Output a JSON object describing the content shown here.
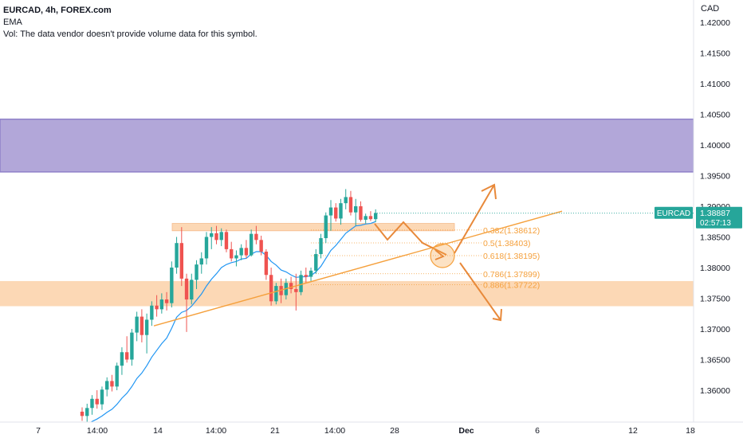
{
  "legend": {
    "symbol": "EURCAD, 4h, FOREX.com",
    "indicator": "EMA",
    "volume_note": "Vol: The data vendor doesn't provide volume data for this symbol."
  },
  "price_axis": {
    "currency": "CAD",
    "ticks": [
      "1.42000",
      "1.41500",
      "1.41000",
      "1.40500",
      "1.40000",
      "1.39500",
      "1.39000",
      "1.38500",
      "1.38000",
      "1.37500",
      "1.37000",
      "1.36500",
      "1.36000"
    ],
    "range": [
      1.3555,
      1.4232
    ]
  },
  "price_label": {
    "symbol": "EURCAD",
    "price": "1.38887",
    "countdown": "02:57:13"
  },
  "time_axis": {
    "labels": [
      "7",
      "14:00",
      "14",
      "14:00",
      "21",
      "14:00",
      "28",
      "Dec",
      "6",
      "12",
      "18"
    ],
    "bold": [
      "Dec"
    ]
  },
  "fib_levels": [
    {
      "label": "0.382(1.38612)",
      "ratio": 0.382,
      "price": 1.38612
    },
    {
      "label": "0.5(1.38403)",
      "ratio": 0.5,
      "price": 1.38403
    },
    {
      "label": "0.618(1.38195)",
      "ratio": 0.618,
      "price": 1.38195
    },
    {
      "label": "0.786(1.37899)",
      "ratio": 0.786,
      "price": 1.37899
    },
    {
      "label": "0.886(1.37722)",
      "ratio": 0.886,
      "price": 1.37722
    }
  ],
  "zones": [
    {
      "type": "resistance",
      "from": 1.3956,
      "to": 1.4042,
      "color": "#b2a7d9"
    },
    {
      "type": "support",
      "from": 1.3737,
      "to": 1.3778,
      "color": "#fcd8b5"
    },
    {
      "type": "resistance-thin",
      "from": 1.386,
      "to": 1.3872,
      "color": "#fcd8b5"
    }
  ],
  "colors": {
    "up": "#26a69a",
    "down": "#ef5350",
    "ema": "#2196f3",
    "drawing": "#f5a03c",
    "arrow": "#e8893a",
    "label_bg": "#26a69a",
    "resistance": "#b2a7d9",
    "support": "#fcd8b5"
  },
  "chart_data": {
    "type": "candlestick",
    "symbol": "EURCAD",
    "timeframe": "4h",
    "ylim": [
      1.3555,
      1.4232
    ],
    "candles": [
      {
        "o": 1.3565,
        "h": 1.3572,
        "l": 1.355,
        "c": 1.3558
      },
      {
        "o": 1.3558,
        "h": 1.3578,
        "l": 1.3545,
        "c": 1.3571
      },
      {
        "o": 1.3571,
        "h": 1.3592,
        "l": 1.356,
        "c": 1.3586
      },
      {
        "o": 1.3586,
        "h": 1.36,
        "l": 1.357,
        "c": 1.3577
      },
      {
        "o": 1.3577,
        "h": 1.3606,
        "l": 1.3568,
        "c": 1.3601
      },
      {
        "o": 1.3601,
        "h": 1.3621,
        "l": 1.359,
        "c": 1.3615
      },
      {
        "o": 1.3615,
        "h": 1.3625,
        "l": 1.3598,
        "c": 1.3606
      },
      {
        "o": 1.3606,
        "h": 1.3645,
        "l": 1.36,
        "c": 1.364
      },
      {
        "o": 1.364,
        "h": 1.367,
        "l": 1.3625,
        "c": 1.3662
      },
      {
        "o": 1.3662,
        "h": 1.3688,
        "l": 1.3645,
        "c": 1.365
      },
      {
        "o": 1.365,
        "h": 1.37,
        "l": 1.364,
        "c": 1.3694
      },
      {
        "o": 1.3694,
        "h": 1.3728,
        "l": 1.368,
        "c": 1.372
      },
      {
        "o": 1.372,
        "h": 1.3732,
        "l": 1.3678,
        "c": 1.369
      },
      {
        "o": 1.369,
        "h": 1.3725,
        "l": 1.366,
        "c": 1.3715
      },
      {
        "o": 1.3715,
        "h": 1.3745,
        "l": 1.3705,
        "c": 1.3738
      },
      {
        "o": 1.3738,
        "h": 1.3755,
        "l": 1.372,
        "c": 1.3732
      },
      {
        "o": 1.3732,
        "h": 1.3758,
        "l": 1.3725,
        "c": 1.3748
      },
      {
        "o": 1.3748,
        "h": 1.376,
        "l": 1.373,
        "c": 1.3742
      },
      {
        "o": 1.3742,
        "h": 1.381,
        "l": 1.3735,
        "c": 1.38
      },
      {
        "o": 1.38,
        "h": 1.385,
        "l": 1.379,
        "c": 1.384
      },
      {
        "o": 1.384,
        "h": 1.3866,
        "l": 1.377,
        "c": 1.3782
      },
      {
        "o": 1.3782,
        "h": 1.379,
        "l": 1.3695,
        "c": 1.3748
      },
      {
        "o": 1.3748,
        "h": 1.379,
        "l": 1.374,
        "c": 1.378
      },
      {
        "o": 1.378,
        "h": 1.3812,
        "l": 1.3765,
        "c": 1.3805
      },
      {
        "o": 1.3805,
        "h": 1.3825,
        "l": 1.379,
        "c": 1.3815
      },
      {
        "o": 1.3815,
        "h": 1.3858,
        "l": 1.3805,
        "c": 1.385
      },
      {
        "o": 1.385,
        "h": 1.3866,
        "l": 1.383,
        "c": 1.3856
      },
      {
        "o": 1.3856,
        "h": 1.3868,
        "l": 1.3838,
        "c": 1.3845
      },
      {
        "o": 1.3845,
        "h": 1.3864,
        "l": 1.3835,
        "c": 1.3858
      },
      {
        "o": 1.3858,
        "h": 1.3862,
        "l": 1.3825,
        "c": 1.383
      },
      {
        "o": 1.383,
        "h": 1.3842,
        "l": 1.381,
        "c": 1.3815
      },
      {
        "o": 1.3815,
        "h": 1.3828,
        "l": 1.3802,
        "c": 1.382
      },
      {
        "o": 1.382,
        "h": 1.3838,
        "l": 1.3812,
        "c": 1.3832
      },
      {
        "o": 1.3832,
        "h": 1.3845,
        "l": 1.3815,
        "c": 1.382
      },
      {
        "o": 1.382,
        "h": 1.3862,
        "l": 1.3818,
        "c": 1.3855
      },
      {
        "o": 1.3855,
        "h": 1.3868,
        "l": 1.3838,
        "c": 1.3845
      },
      {
        "o": 1.3845,
        "h": 1.3852,
        "l": 1.382,
        "c": 1.3826
      },
      {
        "o": 1.3826,
        "h": 1.383,
        "l": 1.378,
        "c": 1.3788
      },
      {
        "o": 1.3788,
        "h": 1.38,
        "l": 1.3738,
        "c": 1.3745
      },
      {
        "o": 1.3745,
        "h": 1.3775,
        "l": 1.374,
        "c": 1.377
      },
      {
        "o": 1.377,
        "h": 1.3782,
        "l": 1.3742,
        "c": 1.3755
      },
      {
        "o": 1.3755,
        "h": 1.3782,
        "l": 1.3748,
        "c": 1.3775
      },
      {
        "o": 1.3775,
        "h": 1.3785,
        "l": 1.3758,
        "c": 1.3765
      },
      {
        "o": 1.3765,
        "h": 1.379,
        "l": 1.373,
        "c": 1.376
      },
      {
        "o": 1.376,
        "h": 1.3795,
        "l": 1.3755,
        "c": 1.3788
      },
      {
        "o": 1.3788,
        "h": 1.38,
        "l": 1.3775,
        "c": 1.3785
      },
      {
        "o": 1.3785,
        "h": 1.38,
        "l": 1.3778,
        "c": 1.3795
      },
      {
        "o": 1.3795,
        "h": 1.383,
        "l": 1.379,
        "c": 1.3822
      },
      {
        "o": 1.3822,
        "h": 1.3855,
        "l": 1.3815,
        "c": 1.3848
      },
      {
        "o": 1.3848,
        "h": 1.389,
        "l": 1.384,
        "c": 1.3885
      },
      {
        "o": 1.3885,
        "h": 1.391,
        "l": 1.386,
        "c": 1.3898
      },
      {
        "o": 1.3898,
        "h": 1.3905,
        "l": 1.3875,
        "c": 1.388
      },
      {
        "o": 1.388,
        "h": 1.3912,
        "l": 1.387,
        "c": 1.3905
      },
      {
        "o": 1.3905,
        "h": 1.3928,
        "l": 1.3895,
        "c": 1.3915
      },
      {
        "o": 1.3915,
        "h": 1.3925,
        "l": 1.3885,
        "c": 1.389
      },
      {
        "o": 1.389,
        "h": 1.3912,
        "l": 1.3868,
        "c": 1.39
      },
      {
        "o": 1.39,
        "h": 1.3908,
        "l": 1.3875,
        "c": 1.3878
      },
      {
        "o": 1.3878,
        "h": 1.3888,
        "l": 1.3872,
        "c": 1.3884
      },
      {
        "o": 1.3884,
        "h": 1.3892,
        "l": 1.3876,
        "c": 1.3879
      },
      {
        "o": 1.3879,
        "h": 1.3895,
        "l": 1.3874,
        "c": 1.3889
      }
    ],
    "ema": [
      1.354,
      1.3544,
      1.3549,
      1.3553,
      1.3558,
      1.3564,
      1.3569,
      1.3577,
      1.3587,
      1.3595,
      1.3606,
      1.3619,
      1.3628,
      1.364,
      1.3654,
      1.3665,
      1.3676,
      1.3685,
      1.3701,
      1.3719,
      1.3727,
      1.373,
      1.3737,
      1.3747,
      1.3757,
      1.377,
      1.3781,
      1.379,
      1.38,
      1.3805,
      1.3808,
      1.381,
      1.3814,
      1.3815,
      1.3822,
      1.3826,
      1.3826,
      1.382,
      1.381,
      1.3804,
      1.3796,
      1.3793,
      1.3788,
      1.3784,
      1.3785,
      1.3785,
      1.3787,
      1.3793,
      1.3802,
      1.3815,
      1.3828,
      1.3836,
      1.3846,
      1.3856,
      1.3862,
      1.3868,
      1.3869,
      1.3871,
      1.3872,
      1.3875
    ],
    "trendline": {
      "from": 1.3705,
      "to": 1.3892,
      "label": ""
    },
    "current_price": 1.38887
  }
}
